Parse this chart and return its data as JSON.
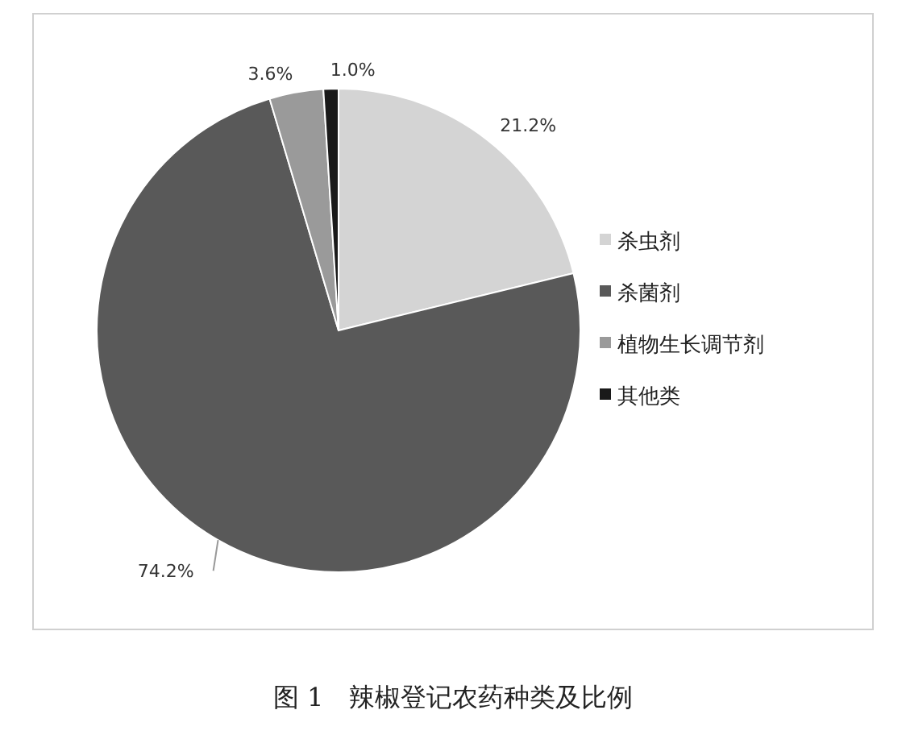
{
  "chart_data": {
    "type": "pie",
    "title": "图 1　辣椒登记农药种类及比例",
    "categories": [
      "杀虫剂",
      "杀菌剂",
      "植物生长调节剂",
      "其他类"
    ],
    "values": [
      21.2,
      74.2,
      3.6,
      1.0
    ],
    "colors": [
      "#d4d4d4",
      "#595959",
      "#9a9a9a",
      "#1a1a1a"
    ],
    "value_labels": [
      "21.2%",
      "74.2%",
      "3.6%",
      "1.0%"
    ],
    "legend": "right"
  }
}
